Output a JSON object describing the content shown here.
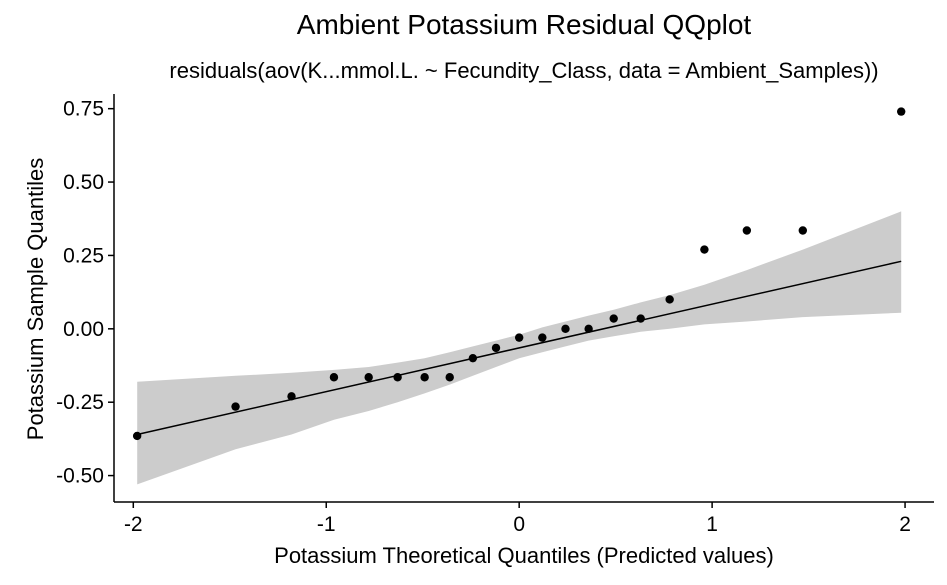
{
  "chart_data": {
    "type": "scatter",
    "title": "Ambient Potassium Residual QQplot",
    "subtitle": "residuals(aov(K...mmol.L. ~ Fecundity_Class, data = Ambient_Samples))",
    "xlabel": "Potassium Theoretical Quantiles (Predicted values)",
    "ylabel": "Potassium Sample Quantiles",
    "xlim": [
      -2.1,
      2.15
    ],
    "ylim": [
      -0.59,
      0.8
    ],
    "x_ticks": [
      -2,
      -1,
      0,
      1,
      2
    ],
    "x_tick_labels": [
      "-2",
      "-1",
      "0",
      "1",
      "2"
    ],
    "y_ticks": [
      -0.5,
      -0.25,
      0.0,
      0.25,
      0.5,
      0.75
    ],
    "y_tick_labels": [
      "-0.50",
      "-0.25",
      "0.00",
      "0.25",
      "0.50",
      "0.75"
    ],
    "grid": false,
    "points": {
      "x": [
        -1.98,
        -1.47,
        -1.18,
        -0.96,
        -0.78,
        -0.63,
        -0.49,
        -0.36,
        -0.24,
        -0.12,
        0.0,
        0.12,
        0.24,
        0.36,
        0.49,
        0.63,
        0.78,
        0.96,
        1.18,
        1.47,
        1.98
      ],
      "y": [
        -0.365,
        -0.265,
        -0.23,
        -0.165,
        -0.165,
        -0.165,
        -0.165,
        -0.165,
        -0.1,
        -0.065,
        -0.03,
        -0.03,
        0.0,
        0.0,
        0.035,
        0.035,
        0.1,
        0.27,
        0.335,
        0.335,
        0.74
      ]
    },
    "reference_line": {
      "x": [
        -1.98,
        1.98
      ],
      "y": [
        -0.36,
        0.23
      ]
    },
    "confidence_band": {
      "x": [
        -1.98,
        -1.47,
        -1.18,
        -0.96,
        -0.78,
        -0.63,
        -0.49,
        -0.36,
        -0.24,
        -0.12,
        0.0,
        0.12,
        0.24,
        0.36,
        0.49,
        0.63,
        0.78,
        0.96,
        1.18,
        1.47,
        1.98
      ],
      "lower": [
        -0.53,
        -0.41,
        -0.36,
        -0.31,
        -0.28,
        -0.25,
        -0.22,
        -0.19,
        -0.16,
        -0.13,
        -0.1,
        -0.08,
        -0.06,
        -0.04,
        -0.025,
        -0.01,
        0.0,
        0.015,
        0.025,
        0.04,
        0.055
      ],
      "upper": [
        -0.18,
        -0.16,
        -0.15,
        -0.14,
        -0.13,
        -0.115,
        -0.1,
        -0.08,
        -0.06,
        -0.04,
        -0.02,
        0.005,
        0.025,
        0.045,
        0.065,
        0.09,
        0.115,
        0.15,
        0.2,
        0.27,
        0.4
      ]
    },
    "colors": {
      "points": "#000000",
      "line": "#000000",
      "band": "#cccccc",
      "axis": "#000000"
    }
  }
}
